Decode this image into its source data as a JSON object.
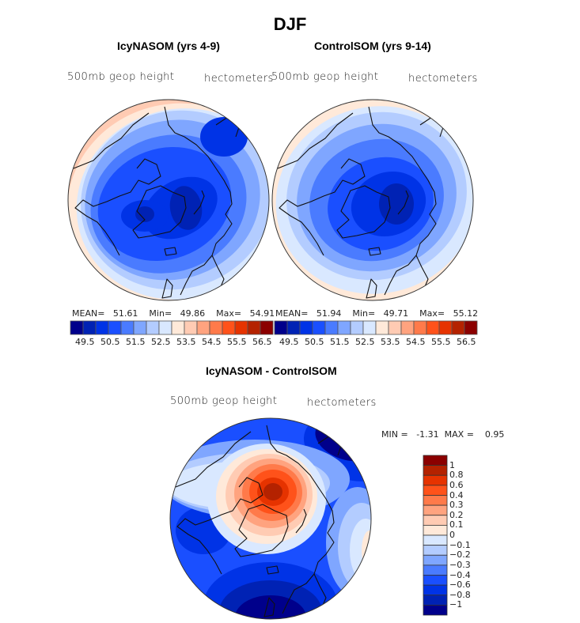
{
  "figure": {
    "title": "DJF"
  },
  "palette16": [
    "#00008b",
    "#0022b4",
    "#0033e6",
    "#1a4fff",
    "#4a7bff",
    "#7fa6ff",
    "#b3ccff",
    "#d9e8ff",
    "#ffe9d9",
    "#ffcbb3",
    "#ffa37f",
    "#ff7a4a",
    "#ff521a",
    "#e63300",
    "#b42200",
    "#8b0000"
  ],
  "chart_data": [
    {
      "type": "heatmap",
      "projection": "north polar stereographic",
      "title": "IcyNASOM (yrs 4-9)",
      "variable_label": "500mb geop height",
      "units_label": "hectometers",
      "stats": {
        "mean_label": "MEAN=",
        "mean": "51.61",
        "min_label": "Min=",
        "min": "49.86",
        "max_label": "Max=",
        "max": "54.91"
      },
      "colorbar": {
        "orientation": "horizontal",
        "levels": [
          49.5,
          50.5,
          51.5,
          52.5,
          53.5,
          54.5,
          55.5,
          56.5
        ],
        "tick_labels": [
          "49.5",
          "50.5",
          "51.5",
          "52.5",
          "53.5",
          "54.5",
          "55.5",
          "56.5"
        ],
        "n_colors": 16
      },
      "field_levels": [
        0,
        1,
        2,
        3,
        4,
        5,
        6,
        7,
        8,
        9,
        10,
        11
      ],
      "description": "Low (deep blue) centered over Arctic / Canadian Archipelago, higher (orange) at mid-latitude edges Pacific and Atlantic"
    },
    {
      "type": "heatmap",
      "projection": "north polar stereographic",
      "title": "ControlSOM (yrs 9-14)",
      "variable_label": "500mb geop height",
      "units_label": "hectometers",
      "stats": {
        "mean_label": "MEAN=",
        "mean": "51.94",
        "min_label": "Min=",
        "min": "49.71",
        "max_label": "Max=",
        "max": "55.12"
      },
      "colorbar": {
        "orientation": "horizontal",
        "levels": [
          49.5,
          50.5,
          51.5,
          52.5,
          53.5,
          54.5,
          55.5,
          56.5
        ],
        "tick_labels": [
          "49.5",
          "50.5",
          "51.5",
          "52.5",
          "53.5",
          "54.5",
          "55.5",
          "56.5"
        ],
        "n_colors": 16
      },
      "description": "Low centered near pole, ring of increasing height toward edges"
    },
    {
      "type": "heatmap",
      "projection": "north polar stereographic",
      "title": "IcyNASOM - ControlSOM",
      "variable_label": "500mb geop height",
      "units_label": "hectometers",
      "stats": {
        "min_label": "MIN =",
        "min": "-1.31",
        "max_label": "MAX =",
        "max": "0.95"
      },
      "colorbar": {
        "orientation": "vertical",
        "tick_labels": [
          "1",
          "0.8",
          "0.6",
          "0.4",
          "0.3",
          "0.2",
          "0.1",
          "0",
          "−0.1",
          "−0.2",
          "−0.3",
          "−0.4",
          "−0.6",
          "−0.8",
          "−1"
        ],
        "levels": [
          1,
          0.8,
          0.6,
          0.4,
          0.3,
          0.2,
          0.1,
          0,
          -0.1,
          -0.2,
          -0.3,
          -0.4,
          -0.6,
          -0.8,
          -1
        ],
        "n_colors": 16
      },
      "description": "Positive anomaly (red, up to ~0.95) over Arctic Ocean; negative (blue, down to ~-1.31) over N Atlantic/Europe and elsewhere"
    }
  ]
}
